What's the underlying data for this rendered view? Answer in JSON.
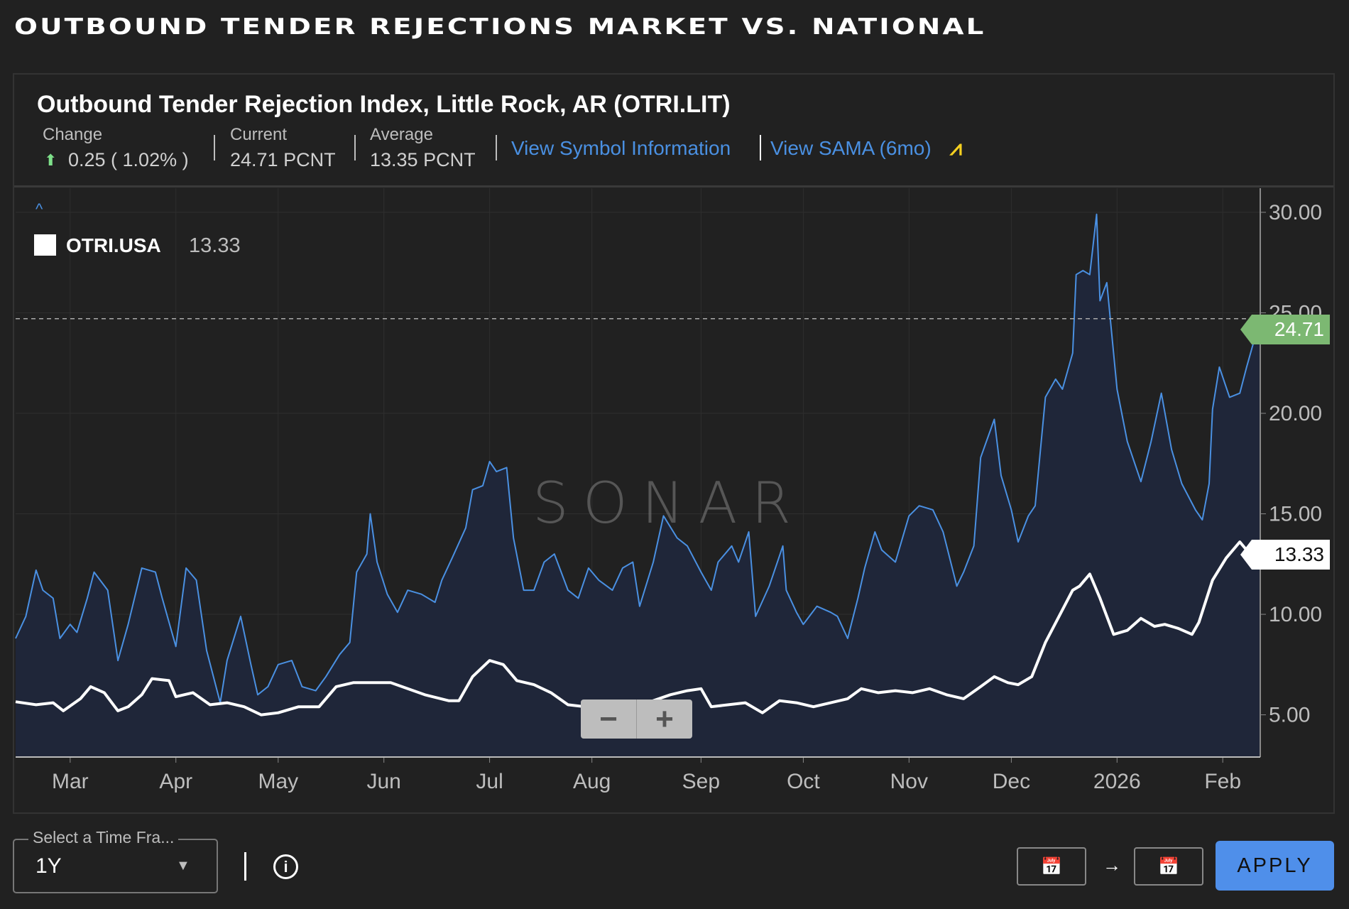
{
  "page_title": "OUTBOUND TENDER REJECTIONS MARKET VS. NATIONAL",
  "header": {
    "title": "Outbound Tender Rejection Index, Little Rock, AR (OTRI.LIT)",
    "change_label": "Change",
    "change_value": "0.25 ( 1.02% )",
    "current_label": "Current",
    "current_value": "24.71 PCNT",
    "average_label": "Average",
    "average_value": "13.35 PCNT",
    "symbol_link": "View Symbol Information",
    "sama_link": "View SAMA (6mo)"
  },
  "legend": {
    "name": "OTRI.USA",
    "value": "13.33"
  },
  "watermark": "SONAR",
  "zoom": {
    "minus": "−",
    "plus": "+"
  },
  "controls": {
    "select_label": "Select a Time Fra...",
    "select_value": "1Y",
    "info": "i",
    "arrow": "→",
    "apply": "APPLY"
  },
  "colors": {
    "lit": "#4a90e2",
    "usa": "#ffffff",
    "lit_tag": "#7cb872",
    "fill": "#1f2639",
    "background": "#212121"
  },
  "chart_data": {
    "type": "line",
    "xlabel": "",
    "ylabel": "",
    "x_unit": "days since start of 1Y window",
    "xlim": [
      0,
      365
    ],
    "ylim": [
      2.9,
      31.2
    ],
    "yticks": [
      5,
      10,
      15,
      20,
      25,
      30
    ],
    "ytick_labels": [
      "5.00",
      "10.00",
      "15.00",
      "20.00",
      "25.00",
      "30.00"
    ],
    "xticks": [
      {
        "day": 16,
        "label": "Mar"
      },
      {
        "day": 47,
        "label": "Apr"
      },
      {
        "day": 77,
        "label": "May"
      },
      {
        "day": 108,
        "label": "Jun"
      },
      {
        "day": 139,
        "label": "Jul"
      },
      {
        "day": 169,
        "label": "Aug"
      },
      {
        "day": 201,
        "label": "Sep"
      },
      {
        "day": 231,
        "label": "Oct"
      },
      {
        "day": 262,
        "label": "Nov"
      },
      {
        "day": 292,
        "label": "Dec"
      },
      {
        "day": 323,
        "label": "2026"
      },
      {
        "day": 354,
        "label": "Feb"
      }
    ],
    "grid": true,
    "last_values": {
      "OTRI.LIT": "24.71",
      "OTRI.USA": "13.33"
    },
    "reference_line": 24.71,
    "series": [
      {
        "name": "OTRI.LIT",
        "area": true,
        "points": [
          [
            0,
            8.8
          ],
          [
            3,
            9.9
          ],
          [
            6,
            12.2
          ],
          [
            8,
            11.2
          ],
          [
            11,
            10.8
          ],
          [
            13,
            8.8
          ],
          [
            16,
            9.5
          ],
          [
            18,
            9.1
          ],
          [
            21,
            10.8
          ],
          [
            23,
            12.1
          ],
          [
            27,
            11.2
          ],
          [
            30,
            7.7
          ],
          [
            33,
            9.5
          ],
          [
            37,
            12.3
          ],
          [
            41,
            12.1
          ],
          [
            43,
            10.8
          ],
          [
            47,
            8.4
          ],
          [
            50,
            12.3
          ],
          [
            53,
            11.7
          ],
          [
            56,
            8.2
          ],
          [
            60,
            5.6
          ],
          [
            62,
            7.7
          ],
          [
            66,
            9.9
          ],
          [
            69,
            7.5
          ],
          [
            71,
            6.0
          ],
          [
            74,
            6.4
          ],
          [
            77,
            7.5
          ],
          [
            81,
            7.7
          ],
          [
            84,
            6.4
          ],
          [
            88,
            6.2
          ],
          [
            91,
            6.9
          ],
          [
            95,
            8.0
          ],
          [
            98,
            8.6
          ],
          [
            100,
            12.1
          ],
          [
            103,
            13.0
          ],
          [
            104,
            15.0
          ],
          [
            106,
            12.6
          ],
          [
            109,
            11.0
          ],
          [
            112,
            10.1
          ],
          [
            115,
            11.2
          ],
          [
            119,
            11.0
          ],
          [
            123,
            10.6
          ],
          [
            125,
            11.7
          ],
          [
            128,
            12.8
          ],
          [
            132,
            14.3
          ],
          [
            134,
            16.2
          ],
          [
            137,
            16.4
          ],
          [
            139,
            17.6
          ],
          [
            141,
            17.1
          ],
          [
            144,
            17.3
          ],
          [
            146,
            13.8
          ],
          [
            149,
            11.2
          ],
          [
            152,
            11.2
          ],
          [
            155,
            12.6
          ],
          [
            158,
            13.0
          ],
          [
            162,
            11.2
          ],
          [
            165,
            10.8
          ],
          [
            168,
            12.3
          ],
          [
            171,
            11.7
          ],
          [
            175,
            11.2
          ],
          [
            178,
            12.3
          ],
          [
            181,
            12.6
          ],
          [
            183,
            10.4
          ],
          [
            187,
            12.6
          ],
          [
            190,
            14.9
          ],
          [
            194,
            13.8
          ],
          [
            197,
            13.4
          ],
          [
            201,
            12.1
          ],
          [
            204,
            11.2
          ],
          [
            206,
            12.6
          ],
          [
            210,
            13.4
          ],
          [
            212,
            12.6
          ],
          [
            215,
            14.1
          ],
          [
            217,
            9.9
          ],
          [
            221,
            11.4
          ],
          [
            225,
            13.4
          ],
          [
            226,
            11.2
          ],
          [
            229,
            10.1
          ],
          [
            231,
            9.5
          ],
          [
            235,
            10.4
          ],
          [
            239,
            10.1
          ],
          [
            241,
            9.9
          ],
          [
            244,
            8.8
          ],
          [
            247,
            10.8
          ],
          [
            249,
            12.3
          ],
          [
            252,
            14.1
          ],
          [
            254,
            13.2
          ],
          [
            258,
            12.6
          ],
          [
            262,
            14.9
          ],
          [
            265,
            15.4
          ],
          [
            269,
            15.2
          ],
          [
            272,
            14.1
          ],
          [
            276,
            11.4
          ],
          [
            278,
            12.1
          ],
          [
            281,
            13.4
          ],
          [
            283,
            17.8
          ],
          [
            287,
            19.7
          ],
          [
            289,
            16.9
          ],
          [
            292,
            15.2
          ],
          [
            294,
            13.6
          ],
          [
            297,
            14.9
          ],
          [
            299,
            15.4
          ],
          [
            302,
            20.8
          ],
          [
            305,
            21.7
          ],
          [
            307,
            21.2
          ],
          [
            310,
            23.0
          ],
          [
            311,
            26.9
          ],
          [
            313,
            27.1
          ],
          [
            315,
            26.9
          ],
          [
            317,
            29.9
          ],
          [
            318,
            25.6
          ],
          [
            320,
            26.5
          ],
          [
            323,
            21.2
          ],
          [
            326,
            18.6
          ],
          [
            330,
            16.6
          ],
          [
            333,
            18.6
          ],
          [
            336,
            21.0
          ],
          [
            339,
            18.2
          ],
          [
            342,
            16.5
          ],
          [
            346,
            15.2
          ],
          [
            348,
            14.7
          ],
          [
            350,
            16.5
          ],
          [
            351,
            20.2
          ],
          [
            353,
            22.3
          ],
          [
            356,
            20.8
          ],
          [
            359,
            21.0
          ],
          [
            361,
            22.3
          ],
          [
            365,
            24.71
          ]
        ]
      },
      {
        "name": "OTRI.USA",
        "area": false,
        "points": [
          [
            0,
            5.65
          ],
          [
            6,
            5.5
          ],
          [
            11,
            5.6
          ],
          [
            14,
            5.2
          ],
          [
            19,
            5.8
          ],
          [
            22,
            6.4
          ],
          [
            26,
            6.1
          ],
          [
            30,
            5.2
          ],
          [
            33,
            5.4
          ],
          [
            37,
            6.0
          ],
          [
            40,
            6.8
          ],
          [
            45,
            6.7
          ],
          [
            47,
            5.9
          ],
          [
            52,
            6.1
          ],
          [
            57,
            5.5
          ],
          [
            62,
            5.6
          ],
          [
            67,
            5.4
          ],
          [
            72,
            5.0
          ],
          [
            77,
            5.1
          ],
          [
            83,
            5.4
          ],
          [
            89,
            5.4
          ],
          [
            94,
            6.4
          ],
          [
            99,
            6.6
          ],
          [
            105,
            6.6
          ],
          [
            110,
            6.6
          ],
          [
            115,
            6.3
          ],
          [
            120,
            6.0
          ],
          [
            127,
            5.7
          ],
          [
            130,
            5.7
          ],
          [
            134,
            6.9
          ],
          [
            139,
            7.7
          ],
          [
            143,
            7.5
          ],
          [
            147,
            6.7
          ],
          [
            152,
            6.5
          ],
          [
            157,
            6.1
          ],
          [
            162,
            5.5
          ],
          [
            167,
            5.4
          ],
          [
            172,
            5.4
          ],
          [
            177,
            5.1
          ],
          [
            182,
            5.1
          ],
          [
            187,
            5.7
          ],
          [
            192,
            6.0
          ],
          [
            197,
            6.2
          ],
          [
            201,
            6.3
          ],
          [
            204,
            5.4
          ],
          [
            209,
            5.5
          ],
          [
            214,
            5.6
          ],
          [
            219,
            5.1
          ],
          [
            224,
            5.7
          ],
          [
            229,
            5.6
          ],
          [
            234,
            5.4
          ],
          [
            239,
            5.6
          ],
          [
            244,
            5.8
          ],
          [
            248,
            6.3
          ],
          [
            253,
            6.1
          ],
          [
            258,
            6.2
          ],
          [
            263,
            6.1
          ],
          [
            268,
            6.3
          ],
          [
            273,
            6.0
          ],
          [
            278,
            5.8
          ],
          [
            283,
            6.4
          ],
          [
            287,
            6.9
          ],
          [
            291,
            6.6
          ],
          [
            294,
            6.5
          ],
          [
            298,
            6.9
          ],
          [
            302,
            8.6
          ],
          [
            306,
            9.9
          ],
          [
            310,
            11.2
          ],
          [
            312,
            11.4
          ],
          [
            315,
            12.0
          ],
          [
            318,
            10.8
          ],
          [
            322,
            9.0
          ],
          [
            326,
            9.2
          ],
          [
            330,
            9.8
          ],
          [
            334,
            9.4
          ],
          [
            337,
            9.5
          ],
          [
            341,
            9.3
          ],
          [
            345,
            9.0
          ],
          [
            347,
            9.6
          ],
          [
            351,
            11.7
          ],
          [
            355,
            12.8
          ],
          [
            359,
            13.6
          ],
          [
            361,
            13.2
          ],
          [
            365,
            13.33
          ]
        ]
      }
    ]
  }
}
